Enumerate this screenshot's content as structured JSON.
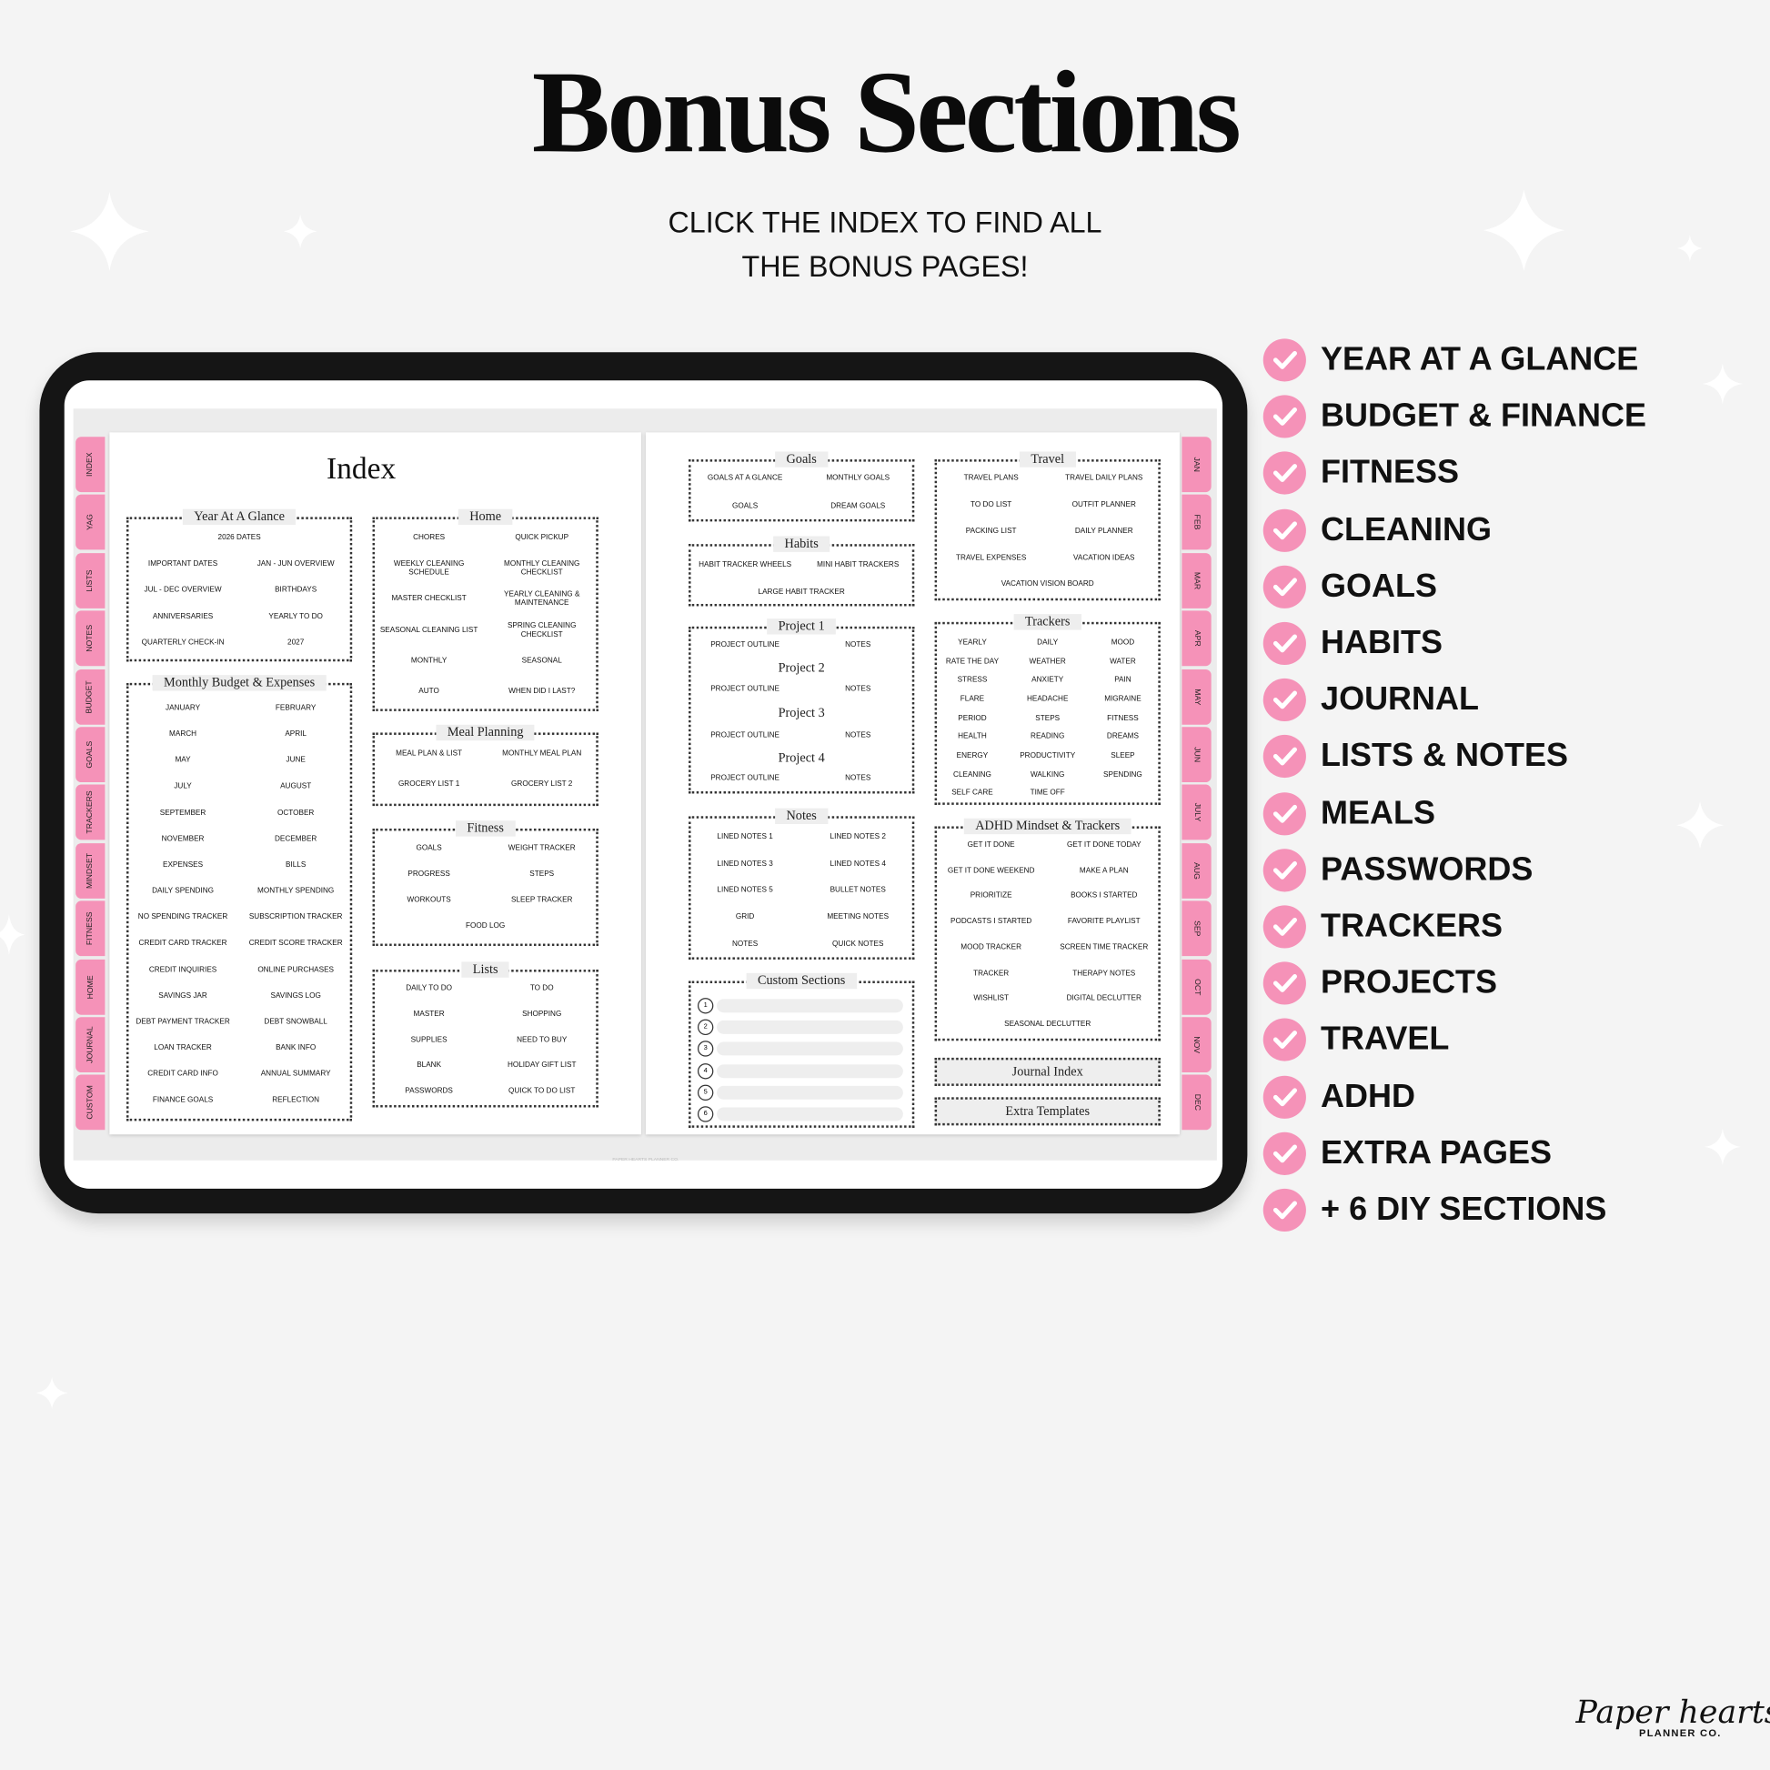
{
  "title": "Bonus Sections",
  "subtitle": [
    "CLICK THE INDEX TO FIND ALL",
    "THE BONUS PAGES!"
  ],
  "features": [
    "YEAR AT A GLANCE",
    "BUDGET & FINANCE",
    "FITNESS",
    "CLEANING",
    "GOALS",
    "HABITS",
    "JOURNAL",
    "LISTS & NOTES",
    "MEALS",
    "PASSWORDS",
    "TRACKERS",
    "PROJECTS",
    "TRAVEL",
    "ADHD",
    "EXTRA PAGES",
    "+ 6 DIY SECTIONS"
  ],
  "brand": {
    "name": "Paper hearts",
    "sub": "PLANNER CO."
  },
  "planner": {
    "index_title": "Index",
    "footer": "PAPER HEARTS PLANNER CO.",
    "left_tabs": [
      "INDEX",
      "YAG",
      "LISTS",
      "NOTES",
      "BUDGET",
      "GOALS",
      "TRACKERS",
      "MINDSET",
      "FITNESS",
      "HOME",
      "JOURNAL",
      "CUSTOM"
    ],
    "right_tabs": [
      "JAN",
      "FEB",
      "MAR",
      "APR",
      "MAY",
      "JUN",
      "JULY",
      "AUG",
      "SEP",
      "OCT",
      "NOV",
      "DEC"
    ],
    "sections": [
      {
        "title": "Year At A Glance",
        "items": [
          "2026 DATES",
          "IMPORTANT DATES",
          "JAN - JUN OVERVIEW",
          "JUL - DEC OVERVIEW",
          "BIRTHDAYS",
          "ANNIVERSARIES",
          "YEARLY TO DO",
          "QUARTERLY CHECK-IN",
          "2027"
        ]
      },
      {
        "title": "Monthly Budget & Expenses",
        "items": [
          "JANUARY",
          "FEBRUARY",
          "MARCH",
          "APRIL",
          "MAY",
          "JUNE",
          "JULY",
          "AUGUST",
          "SEPTEMBER",
          "OCTOBER",
          "NOVEMBER",
          "DECEMBER",
          "EXPENSES",
          "BILLS",
          "DAILY SPENDING",
          "MONTHLY SPENDING",
          "NO SPENDING TRACKER",
          "SUBSCRIPTION TRACKER",
          "CREDIT CARD TRACKER",
          "CREDIT SCORE TRACKER",
          "CREDIT INQUIRIES",
          "ONLINE PURCHASES",
          "SAVINGS JAR",
          "SAVINGS LOG",
          "DEBT PAYMENT TRACKER",
          "DEBT SNOWBALL",
          "LOAN TRACKER",
          "BANK INFO",
          "CREDIT CARD INFO",
          "ANNUAL SUMMARY",
          "FINANCE GOALS",
          "REFLECTION"
        ]
      },
      {
        "title": "Home",
        "items": [
          "CHORES",
          "QUICK PICKUP",
          "WEEKLY CLEANING SCHEDULE",
          "MONTHLY CLEANING CHECKLIST",
          "MASTER CHECKLIST",
          "YEARLY CLEANING & MAINTENANCE",
          "SEASONAL CLEANING LIST",
          "SPRING CLEANING CHECKLIST",
          "MONTHLY",
          "SEASONAL",
          "AUTO",
          "WHEN DID I LAST?"
        ]
      },
      {
        "title": "Meal Planning",
        "items": [
          "MEAL PLAN & LIST",
          "MONTHLY MEAL PLAN",
          "GROCERY LIST 1",
          "GROCERY LIST 2"
        ]
      },
      {
        "title": "Fitness",
        "items": [
          "GOALS",
          "WEIGHT TRACKER",
          "PROGRESS",
          "STEPS",
          "WORKOUTS",
          "SLEEP TRACKER",
          "FOOD LOG"
        ]
      },
      {
        "title": "Lists",
        "items": [
          "DAILY TO DO",
          "TO DO",
          "MASTER",
          "SHOPPING",
          "SUPPLIES",
          "NEED TO BUY",
          "BLANK",
          "HOLIDAY GIFT LIST",
          "PASSWORDS",
          "QUICK TO DO LIST"
        ]
      },
      {
        "title": "Goals",
        "items": [
          "GOALS AT A GLANCE",
          "MONTHLY GOALS",
          "GOALS",
          "DREAM GOALS"
        ]
      },
      {
        "title": "Habits",
        "items": [
          "HABIT TRACKER WHEELS",
          "MINI HABIT TRACKERS",
          "LARGE HABIT TRACKER"
        ]
      },
      {
        "title": "Project 1",
        "items": [
          "PROJECT OUTLINE",
          "NOTES"
        ]
      },
      {
        "title": "Project 2",
        "items": [
          "PROJECT OUTLINE",
          "NOTES"
        ]
      },
      {
        "title": "Project 3",
        "items": [
          "PROJECT OUTLINE",
          "NOTES"
        ]
      },
      {
        "title": "Project 4",
        "items": [
          "PROJECT OUTLINE",
          "NOTES"
        ]
      },
      {
        "title": "Notes",
        "items": [
          "LINED NOTES 1",
          "LINED NOTES 2",
          "LINED NOTES 3",
          "LINED NOTES 4",
          "LINED NOTES 5",
          "BULLET NOTES",
          "GRID",
          "MEETING NOTES",
          "NOTES",
          "QUICK NOTES"
        ]
      },
      {
        "title": "Custom Sections",
        "items": [
          1,
          2,
          3,
          4,
          5,
          6
        ]
      },
      {
        "title": "Travel",
        "items": [
          "TRAVEL PLANS",
          "TRAVEL DAILY PLANS",
          "TO DO LIST",
          "OUTFIT PLANNER",
          "PACKING LIST",
          "DAILY PLANNER",
          "TRAVEL EXPENSES",
          "VACATION IDEAS",
          "VACATION VISION BOARD"
        ]
      },
      {
        "title": "Trackers",
        "items": [
          "YEARLY",
          "DAILY",
          "MOOD",
          "RATE THE DAY",
          "WEATHER",
          "WATER",
          "STRESS",
          "ANXIETY",
          "PAIN",
          "FLARE",
          "HEADACHE",
          "MIGRAINE",
          "PERIOD",
          "STEPS",
          "FITNESS",
          "HEALTH",
          "READING",
          "DREAMS",
          "ENERGY",
          "PRODUCTIVITY",
          "SLEEP",
          "CLEANING",
          "WALKING",
          "SPENDING",
          "SELF CARE",
          "TIME OFF"
        ]
      },
      {
        "title": "ADHD Mindset & Trackers",
        "items": [
          "GET IT DONE",
          "GET IT DONE TODAY",
          "GET IT DONE WEEKEND",
          "MAKE A PLAN",
          "PRIORITIZE",
          "BOOKS I STARTED",
          "PODCASTS I STARTED",
          "FAVORITE PLAYLIST",
          "MOOD TRACKER",
          "SCREEN TIME TRACKER",
          "TRACKER",
          "THERAPY  NOTES",
          "WISHLIST",
          "DIGITAL DECLUTTER",
          "SEASONAL DECLUTTER"
        ]
      },
      {
        "title": "Journal Index"
      },
      {
        "title": "Extra Templates"
      }
    ]
  }
}
